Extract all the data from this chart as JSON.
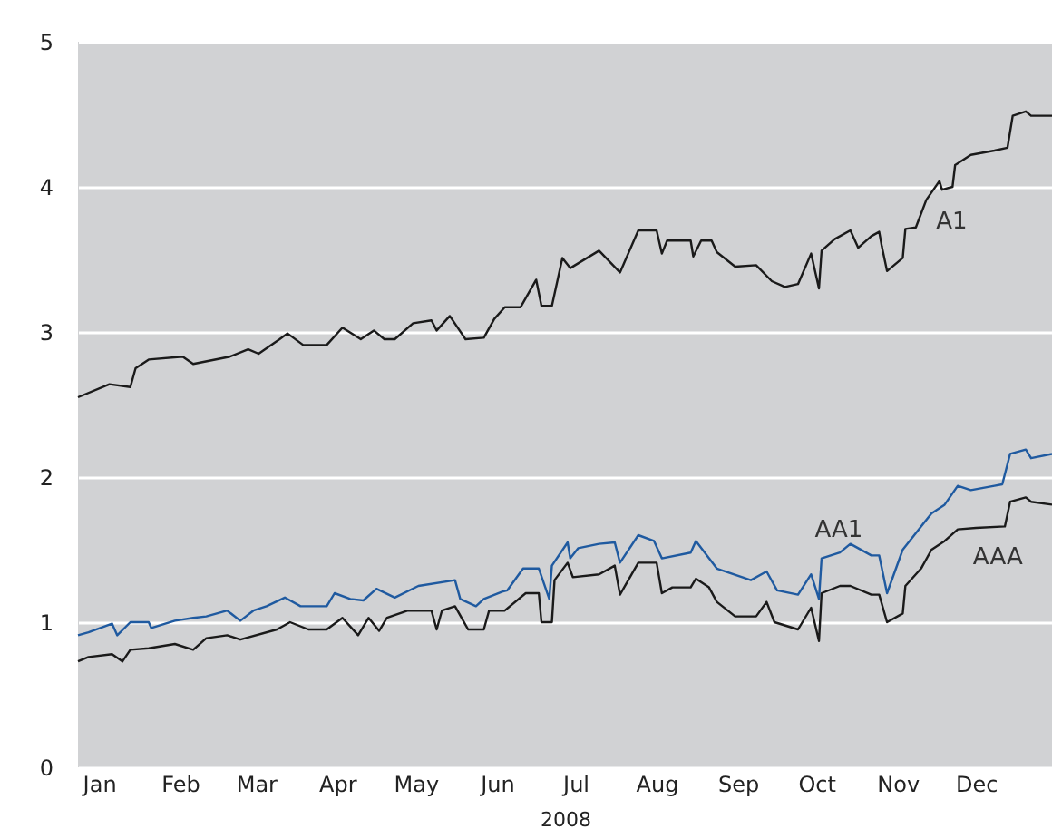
{
  "chart_data": {
    "type": "line",
    "xlabel": "2008",
    "xlim": [
      "2007-12-24",
      "2008-12-30"
    ],
    "ylim": [
      0,
      5
    ],
    "yticks": [
      0,
      1,
      2,
      3,
      4,
      5
    ],
    "grid": "y",
    "xticks": [
      {
        "value": "2008-01-01",
        "label": "Jan"
      },
      {
        "value": "2008-02-01",
        "label": "Feb"
      },
      {
        "value": "2008-03-01",
        "label": "Mar"
      },
      {
        "value": "2008-04-01",
        "label": "Apr"
      },
      {
        "value": "2008-05-01",
        "label": "May"
      },
      {
        "value": "2008-06-01",
        "label": "Jun"
      },
      {
        "value": "2008-07-01",
        "label": "Jul"
      },
      {
        "value": "2008-08-01",
        "label": "Aug"
      },
      {
        "value": "2008-09-01",
        "label": "Sep"
      },
      {
        "value": "2008-10-01",
        "label": "Oct"
      },
      {
        "value": "2008-11-01",
        "label": "Nov"
      },
      {
        "value": "2008-12-01",
        "label": "Dec"
      }
    ],
    "series": [
      {
        "name": "A1",
        "color": "#1a1a1a",
        "x": [
          "2007-12-24",
          "2008-01-05",
          "2008-01-13",
          "2008-01-15",
          "2008-01-20",
          "2008-02-02",
          "2008-02-06",
          "2008-02-20",
          "2008-02-27",
          "2008-03-02",
          "2008-03-10",
          "2008-03-13",
          "2008-03-19",
          "2008-03-28",
          "2008-04-03",
          "2008-04-10",
          "2008-04-15",
          "2008-04-19",
          "2008-04-23",
          "2008-04-30",
          "2008-05-07",
          "2008-05-09",
          "2008-05-14",
          "2008-05-20",
          "2008-05-27",
          "2008-05-31",
          "2008-06-04",
          "2008-06-10",
          "2008-06-16",
          "2008-06-18",
          "2008-06-22",
          "2008-06-26",
          "2008-06-29",
          "2008-07-10",
          "2008-07-18",
          "2008-07-25",
          "2008-08-01",
          "2008-08-03",
          "2008-08-05",
          "2008-08-14",
          "2008-08-15",
          "2008-08-18",
          "2008-08-22",
          "2008-08-24",
          "2008-08-31",
          "2008-09-08",
          "2008-09-14",
          "2008-09-19",
          "2008-09-24",
          "2008-09-29",
          "2008-10-02",
          "2008-10-03",
          "2008-10-08",
          "2008-10-14",
          "2008-10-17",
          "2008-10-22",
          "2008-10-25",
          "2008-10-26",
          "2008-10-28",
          "2008-11-03",
          "2008-11-04",
          "2008-11-08",
          "2008-11-12",
          "2008-11-17",
          "2008-11-18",
          "2008-11-22",
          "2008-11-23",
          "2008-11-29",
          "2008-12-08",
          "2008-12-13",
          "2008-12-15",
          "2008-12-20",
          "2008-12-22",
          "2008-12-30"
        ],
        "values": [
          2.55,
          2.64,
          2.62,
          2.75,
          2.81,
          2.83,
          2.78,
          2.83,
          2.88,
          2.85,
          2.95,
          2.99,
          2.91,
          2.91,
          3.03,
          2.95,
          3.01,
          2.95,
          2.95,
          3.06,
          3.08,
          3.01,
          3.11,
          2.95,
          2.96,
          3.09,
          3.17,
          3.17,
          3.36,
          3.18,
          3.18,
          3.51,
          3.44,
          3.56,
          3.41,
          3.7,
          3.7,
          3.54,
          3.63,
          3.63,
          3.52,
          3.63,
          3.63,
          3.55,
          3.45,
          3.46,
          3.35,
          3.31,
          3.33,
          3.54,
          3.3,
          3.56,
          3.64,
          3.7,
          3.58,
          3.66,
          3.69,
          3.59,
          3.42,
          3.51,
          3.71,
          3.72,
          3.91,
          4.04,
          3.98,
          4.0,
          4.15,
          4.22,
          4.25,
          4.27,
          4.49,
          4.52,
          4.49,
          4.49
        ]
      },
      {
        "name": "AA1",
        "color": "#1f5aa0",
        "x": [
          "2007-12-24",
          "2007-12-28",
          "2008-01-06",
          "2008-01-08",
          "2008-01-13",
          "2008-01-20",
          "2008-01-21",
          "2008-01-30",
          "2008-02-06",
          "2008-02-11",
          "2008-02-19",
          "2008-02-24",
          "2008-02-29",
          "2008-03-05",
          "2008-03-12",
          "2008-03-18",
          "2008-03-28",
          "2008-03-31",
          "2008-04-06",
          "2008-04-11",
          "2008-04-16",
          "2008-04-23",
          "2008-05-02",
          "2008-05-16",
          "2008-05-18",
          "2008-05-24",
          "2008-05-27",
          "2008-06-03",
          "2008-06-05",
          "2008-06-11",
          "2008-06-17",
          "2008-06-21",
          "2008-06-22",
          "2008-06-28",
          "2008-06-29",
          "2008-07-02",
          "2008-07-10",
          "2008-07-16",
          "2008-07-18",
          "2008-07-25",
          "2008-07-31",
          "2008-08-03",
          "2008-08-14",
          "2008-08-16",
          "2008-08-24",
          "2008-09-06",
          "2008-09-12",
          "2008-09-16",
          "2008-09-24",
          "2008-09-29",
          "2008-10-02",
          "2008-10-03",
          "2008-10-10",
          "2008-10-14",
          "2008-10-22",
          "2008-10-25",
          "2008-10-28",
          "2008-11-03",
          "2008-11-10",
          "2008-11-14",
          "2008-11-19",
          "2008-11-24",
          "2008-11-29",
          "2008-12-08",
          "2008-12-11",
          "2008-12-14",
          "2008-12-20",
          "2008-12-22",
          "2008-12-30"
        ],
        "values": [
          0.91,
          0.93,
          0.99,
          0.91,
          1.0,
          1.0,
          0.96,
          1.01,
          1.03,
          1.04,
          1.08,
          1.01,
          1.08,
          1.11,
          1.17,
          1.11,
          1.11,
          1.2,
          1.16,
          1.15,
          1.23,
          1.17,
          1.25,
          1.29,
          1.16,
          1.11,
          1.16,
          1.21,
          1.22,
          1.37,
          1.37,
          1.16,
          1.39,
          1.55,
          1.44,
          1.51,
          1.54,
          1.55,
          1.41,
          1.6,
          1.56,
          1.44,
          1.48,
          1.56,
          1.37,
          1.29,
          1.35,
          1.22,
          1.19,
          1.33,
          1.16,
          1.44,
          1.48,
          1.54,
          1.46,
          1.46,
          1.2,
          1.5,
          1.66,
          1.75,
          1.81,
          1.94,
          1.91,
          1.94,
          1.95,
          2.16,
          2.19,
          2.13,
          2.16
        ]
      },
      {
        "name": "AAA",
        "color": "#1a1a1a",
        "x": [
          "2007-12-24",
          "2007-12-28",
          "2008-01-06",
          "2008-01-10",
          "2008-01-13",
          "2008-01-20",
          "2008-01-30",
          "2008-02-06",
          "2008-02-11",
          "2008-02-19",
          "2008-02-24",
          "2008-03-09",
          "2008-03-14",
          "2008-03-21",
          "2008-03-28",
          "2008-04-03",
          "2008-04-09",
          "2008-04-13",
          "2008-04-17",
          "2008-04-20",
          "2008-04-28",
          "2008-05-07",
          "2008-05-09",
          "2008-05-11",
          "2008-05-16",
          "2008-05-21",
          "2008-05-27",
          "2008-05-29",
          "2008-06-04",
          "2008-06-12",
          "2008-06-17",
          "2008-06-18",
          "2008-06-22",
          "2008-06-23",
          "2008-06-28",
          "2008-06-30",
          "2008-07-10",
          "2008-07-16",
          "2008-07-18",
          "2008-07-25",
          "2008-08-01",
          "2008-08-03",
          "2008-08-07",
          "2008-08-14",
          "2008-08-16",
          "2008-08-21",
          "2008-08-24",
          "2008-08-31",
          "2008-09-08",
          "2008-09-12",
          "2008-09-15",
          "2008-09-24",
          "2008-09-29",
          "2008-10-02",
          "2008-10-03",
          "2008-10-10",
          "2008-10-14",
          "2008-10-22",
          "2008-10-25",
          "2008-10-28",
          "2008-11-03",
          "2008-11-04",
          "2008-11-10",
          "2008-11-14",
          "2008-11-19",
          "2008-11-24",
          "2008-12-01",
          "2008-12-12",
          "2008-12-14",
          "2008-12-20",
          "2008-12-22",
          "2008-12-30"
        ],
        "values": [
          0.73,
          0.76,
          0.78,
          0.73,
          0.81,
          0.82,
          0.85,
          0.81,
          0.89,
          0.91,
          0.88,
          0.95,
          1.0,
          0.95,
          0.95,
          1.03,
          0.91,
          1.03,
          0.94,
          1.03,
          1.08,
          1.08,
          0.95,
          1.08,
          1.11,
          0.95,
          0.95,
          1.08,
          1.08,
          1.2,
          1.2,
          1.0,
          1.0,
          1.29,
          1.41,
          1.31,
          1.33,
          1.39,
          1.19,
          1.41,
          1.41,
          1.2,
          1.24,
          1.24,
          1.3,
          1.24,
          1.14,
          1.04,
          1.04,
          1.14,
          1.0,
          0.95,
          1.1,
          0.87,
          1.2,
          1.25,
          1.25,
          1.19,
          1.19,
          1.0,
          1.06,
          1.25,
          1.37,
          1.5,
          1.56,
          1.64,
          1.65,
          1.66,
          1.83,
          1.86,
          1.83,
          1.81
        ]
      }
    ],
    "legend": false
  }
}
